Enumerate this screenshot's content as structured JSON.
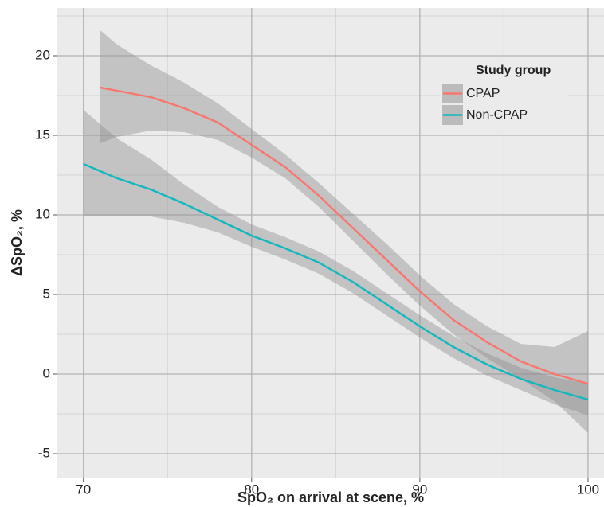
{
  "chart_data": {
    "type": "line",
    "xlabel": "SpO₂ on arrival at scene, %",
    "ylabel": "ΔSpO₂, %",
    "legend_title": "Study group",
    "legend_position": "top-right",
    "grid": true,
    "xlim": [
      68.45,
      100.95
    ],
    "ylim": [
      -6.5,
      23
    ],
    "xticks": [
      70,
      80,
      90,
      100
    ],
    "yticks": [
      -5,
      0,
      5,
      10,
      15,
      20
    ],
    "x_minor_grid": [
      75,
      85,
      95
    ],
    "y_minor_grid": [
      -2.5,
      2.5,
      7.5,
      12.5,
      17.5,
      22.5
    ],
    "band_color": "#8c8c8c",
    "series": [
      {
        "name": "CPAP",
        "color": "#f8766d",
        "x": [
          71,
          72,
          74,
          76,
          78,
          80,
          82,
          84,
          86,
          88,
          90,
          92,
          94,
          96,
          98,
          100
        ],
        "values": [
          18.0,
          17.8,
          17.4,
          16.7,
          15.8,
          14.4,
          13.0,
          11.2,
          9.2,
          7.2,
          5.2,
          3.4,
          2.0,
          0.8,
          0.0,
          -0.6
        ],
        "lower": [
          14.5,
          14.9,
          15.3,
          15.2,
          14.7,
          13.6,
          12.3,
          10.5,
          8.4,
          6.3,
          4.3,
          2.5,
          1.0,
          -0.3,
          -1.7,
          -3.7
        ],
        "upper": [
          21.6,
          20.7,
          19.4,
          18.3,
          17.0,
          15.4,
          13.8,
          12.0,
          10.1,
          8.2,
          6.2,
          4.4,
          3.0,
          1.9,
          1.7,
          2.7
        ]
      },
      {
        "name": "Non-CPAP",
        "color": "#13b8be",
        "x": [
          70,
          72,
          74,
          76,
          78,
          80,
          82,
          84,
          86,
          88,
          90,
          92,
          94,
          96,
          98,
          100
        ],
        "values": [
          13.2,
          12.3,
          11.6,
          10.7,
          9.7,
          8.7,
          7.9,
          7.0,
          5.8,
          4.4,
          3.0,
          1.7,
          0.6,
          -0.3,
          -1.0,
          -1.6
        ],
        "lower": [
          9.9,
          9.9,
          9.9,
          9.5,
          8.9,
          8.0,
          7.2,
          6.3,
          5.1,
          3.7,
          2.3,
          1.0,
          -0.1,
          -1.0,
          -1.9,
          -2.6
        ],
        "upper": [
          16.6,
          14.8,
          13.5,
          11.9,
          10.5,
          9.4,
          8.6,
          7.7,
          6.5,
          5.1,
          3.7,
          2.4,
          1.3,
          0.4,
          -0.2,
          -0.6
        ]
      }
    ]
  }
}
